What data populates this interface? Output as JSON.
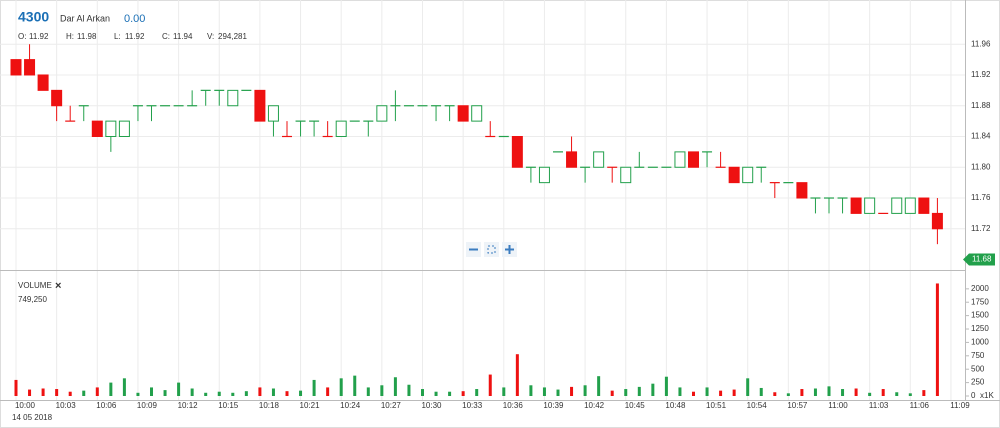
{
  "header": {
    "symbol": "4300",
    "name": "Dar Al Arkan",
    "change": "0.00",
    "stats": [
      {
        "label": "O:",
        "value": "11.92"
      },
      {
        "label": "H:",
        "value": "11.98"
      },
      {
        "label": "L:",
        "value": "11.92"
      },
      {
        "label": "C:",
        "value": "11.94"
      },
      {
        "label": "V:",
        "value": "294,281"
      }
    ]
  },
  "chart_data": {
    "type": "candlestick",
    "date": "14 05 2018",
    "categories": [
      "10:00",
      null,
      null,
      "10:03",
      null,
      null,
      "10:06",
      null,
      null,
      "10:09",
      null,
      null,
      "10:12",
      null,
      null,
      "10:15",
      null,
      null,
      "10:18",
      null,
      null,
      "10:21",
      null,
      null,
      "10:24",
      null,
      null,
      "10:27",
      null,
      null,
      "10:30",
      null,
      null,
      "10:33",
      null,
      null,
      "10:36",
      null,
      null,
      "10:39",
      null,
      null,
      "10:42",
      null,
      null,
      "10:45",
      null,
      null,
      "10:48",
      null,
      null,
      "10:51",
      null,
      null,
      "10:54",
      null,
      null,
      "10:57",
      null,
      null,
      "11:00",
      null,
      null,
      "11:03",
      null,
      null,
      "11:06",
      null,
      null,
      "11:09"
    ],
    "open": [
      11.94,
      11.94,
      11.92,
      11.9,
      11.86,
      11.88,
      11.86,
      11.84,
      11.84,
      11.88,
      11.88,
      11.88,
      11.88,
      11.88,
      11.9,
      11.9,
      11.88,
      11.9,
      11.9,
      11.86,
      11.84,
      11.86,
      11.86,
      11.84,
      11.84,
      11.86,
      11.86,
      11.86,
      11.88,
      11.88,
      11.88,
      11.88,
      11.88,
      11.88,
      11.86,
      11.84,
      11.84,
      11.84,
      11.8,
      11.78,
      11.82,
      11.82,
      11.8,
      11.8,
      11.8,
      11.78,
      11.8,
      11.8,
      11.8,
      11.8,
      11.82,
      11.82,
      11.8,
      11.8,
      11.78,
      11.8,
      11.78,
      11.78,
      11.78,
      11.76,
      11.76,
      11.76,
      11.76,
      11.74,
      11.74,
      11.74,
      11.74,
      11.76,
      11.74,
      null
    ],
    "high": [
      11.94,
      11.96,
      11.92,
      11.9,
      11.88,
      11.88,
      11.86,
      11.86,
      11.86,
      11.88,
      11.88,
      11.88,
      11.88,
      11.9,
      11.9,
      11.9,
      11.9,
      11.9,
      11.9,
      11.88,
      11.86,
      11.86,
      11.86,
      11.86,
      11.86,
      11.86,
      11.86,
      11.88,
      11.9,
      11.88,
      11.88,
      11.88,
      11.88,
      11.88,
      11.88,
      11.86,
      11.84,
      11.84,
      11.8,
      11.8,
      11.82,
      11.84,
      11.8,
      11.82,
      11.8,
      11.8,
      11.82,
      11.8,
      11.8,
      11.82,
      11.82,
      11.82,
      11.82,
      11.8,
      11.8,
      11.8,
      11.78,
      11.78,
      11.78,
      11.76,
      11.76,
      11.76,
      11.76,
      11.76,
      11.74,
      11.76,
      11.76,
      11.76,
      11.76,
      null
    ],
    "low": [
      11.92,
      11.92,
      11.9,
      11.86,
      11.86,
      11.86,
      11.84,
      11.82,
      11.84,
      11.86,
      11.86,
      11.88,
      11.88,
      11.88,
      11.88,
      11.88,
      11.88,
      11.9,
      11.86,
      11.84,
      11.84,
      11.84,
      11.84,
      11.84,
      11.84,
      11.86,
      11.84,
      11.86,
      11.86,
      11.88,
      11.88,
      11.86,
      11.86,
      11.86,
      11.86,
      11.84,
      11.84,
      11.8,
      11.78,
      11.78,
      11.82,
      11.8,
      11.78,
      11.8,
      11.78,
      11.78,
      11.8,
      11.8,
      11.8,
      11.8,
      11.8,
      11.8,
      11.8,
      11.78,
      11.78,
      11.78,
      11.76,
      11.78,
      11.76,
      11.74,
      11.74,
      11.74,
      11.74,
      11.74,
      11.74,
      11.74,
      11.74,
      11.74,
      11.7,
      null
    ],
    "close": [
      11.92,
      11.92,
      11.9,
      11.88,
      11.86,
      11.88,
      11.84,
      11.86,
      11.86,
      11.88,
      11.88,
      11.88,
      11.88,
      11.88,
      11.9,
      11.9,
      11.9,
      11.9,
      11.86,
      11.88,
      11.84,
      11.86,
      11.86,
      11.84,
      11.86,
      11.86,
      11.86,
      11.88,
      11.88,
      11.88,
      11.88,
      11.88,
      11.88,
      11.86,
      11.88,
      11.84,
      11.84,
      11.8,
      11.8,
      11.8,
      11.82,
      11.8,
      11.8,
      11.82,
      11.8,
      11.8,
      11.8,
      11.8,
      11.8,
      11.82,
      11.8,
      11.82,
      11.8,
      11.78,
      11.8,
      11.8,
      11.78,
      11.78,
      11.76,
      11.76,
      11.76,
      11.76,
      11.74,
      11.76,
      11.74,
      11.76,
      11.76,
      11.74,
      11.72,
      null
    ],
    "volume": [
      300,
      120,
      140,
      130,
      80,
      100,
      160,
      250,
      330,
      60,
      160,
      110,
      250,
      140,
      60,
      80,
      60,
      90,
      160,
      140,
      90,
      100,
      300,
      160,
      330,
      380,
      160,
      200,
      350,
      210,
      130,
      80,
      80,
      90,
      130,
      400,
      160,
      780,
      200,
      160,
      120,
      170,
      200,
      370,
      100,
      130,
      170,
      230,
      360,
      160,
      80,
      160,
      100,
      120,
      330,
      150,
      70,
      50,
      130,
      140,
      180,
      130,
      140,
      60,
      130,
      70,
      50,
      110,
      2100,
      null
    ],
    "ylim": [
      11.669,
      12.011
    ],
    "yticks": [
      11.72,
      11.76,
      {
        "value": 11.8,
        "label": "11.80"
      },
      11.84,
      11.88,
      11.92,
      11.96
    ],
    "last_price": 11.68,
    "volume_label": "VOLUME",
    "volume_value": "749,250",
    "volume_unit": "x1K",
    "volume_ylim": [
      0,
      2314
    ],
    "volume_yticks": [
      0,
      250,
      500,
      750,
      1000,
      1250,
      1500,
      1750,
      2000
    ],
    "up_color": "#22a04b",
    "down_color": "#ee1111",
    "grid": true
  }
}
